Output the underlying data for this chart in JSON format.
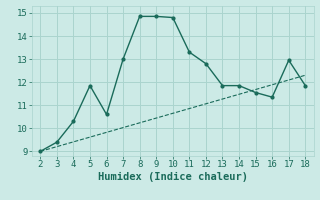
{
  "x": [
    2,
    3,
    4,
    5,
    6,
    7,
    8,
    9,
    10,
    11,
    12,
    13,
    14,
    15,
    16,
    17,
    18
  ],
  "y": [
    9.0,
    9.4,
    10.3,
    11.85,
    10.6,
    13.0,
    14.85,
    14.85,
    14.8,
    13.3,
    12.8,
    11.85,
    11.85,
    11.55,
    11.35,
    12.95,
    11.85
  ],
  "trend_x": [
    2,
    18
  ],
  "trend_y": [
    9.0,
    12.3
  ],
  "line_color": "#1a6b5a",
  "bg_color": "#cceae6",
  "grid_color": "#aad4ce",
  "xlabel": "Humidex (Indice chaleur)",
  "xlim": [
    1.5,
    18.5
  ],
  "ylim": [
    8.8,
    15.3
  ],
  "xticks": [
    2,
    3,
    4,
    5,
    6,
    7,
    8,
    9,
    10,
    11,
    12,
    13,
    14,
    15,
    16,
    17,
    18
  ],
  "yticks": [
    9,
    10,
    11,
    12,
    13,
    14,
    15
  ],
  "font_color": "#1a6b5a",
  "tick_fontsize": 6.5,
  "label_fontsize": 7.5
}
